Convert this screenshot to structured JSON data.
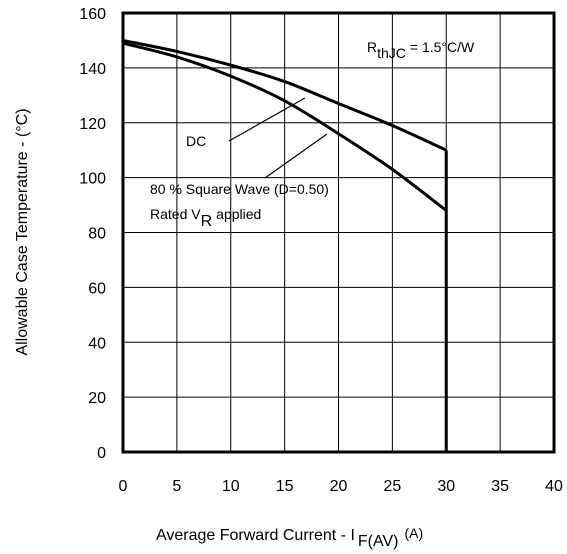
{
  "chart_data": {
    "type": "line",
    "xlabel": "Average Forward Current - I",
    "xlabel_sub": "F(AV)",
    "xlabel_unit": "(A)",
    "ylabel": "Allowable Case Temperature - (°C)",
    "xlim": [
      0,
      40
    ],
    "ylim": [
      0,
      160
    ],
    "x_ticks": [
      0,
      5,
      10,
      15,
      20,
      25,
      30,
      35,
      40
    ],
    "y_ticks": [
      0,
      20,
      40,
      60,
      80,
      100,
      120,
      140,
      160
    ],
    "grid": true,
    "series": [
      {
        "name": "DC",
        "x": [
          0,
          5,
          10,
          15,
          20,
          25,
          30
        ],
        "y": [
          150,
          146,
          141,
          135,
          127,
          119,
          110
        ]
      },
      {
        "name": "80 % Square Wave (D=0.50)",
        "x": [
          0,
          5,
          10,
          15,
          20,
          25,
          30
        ],
        "y": [
          149,
          144,
          137,
          128,
          116,
          103,
          88
        ]
      }
    ],
    "vertical_limit": {
      "x": 30,
      "y_top": 110
    },
    "annotations": {
      "rth_main": "R",
      "rth_sub": "thJC",
      "rth_value": "= 1.5°C/W",
      "dc_label": "DC",
      "square_label": "80 % Square Wave (D=0.50)",
      "rated_main": "Rated V",
      "rated_sub": "R",
      "rated_tail": "applied"
    }
  }
}
